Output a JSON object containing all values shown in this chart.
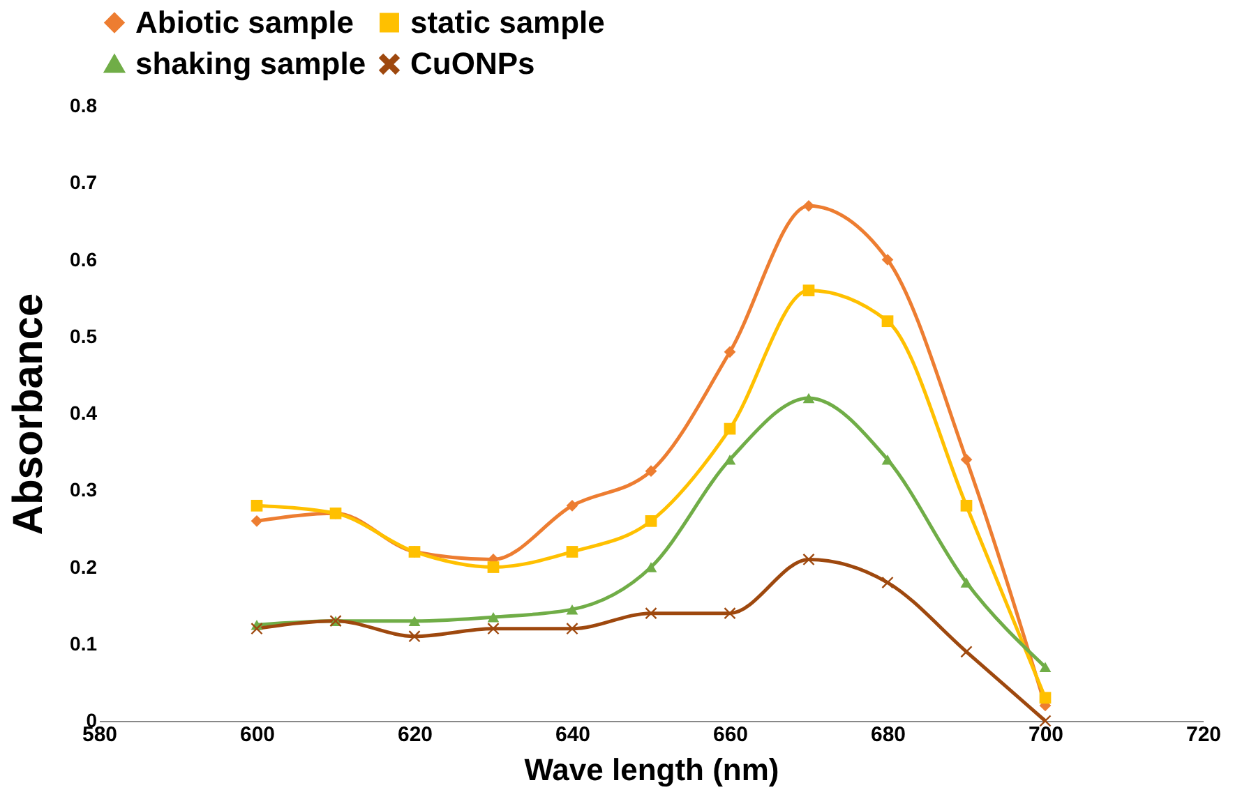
{
  "chart_data": {
    "type": "line",
    "xlabel": "Wave length (nm)",
    "ylabel": "Absorbance",
    "x": [
      600,
      610,
      620,
      630,
      640,
      650,
      660,
      670,
      680,
      690,
      700
    ],
    "series": [
      {
        "name": "Abiotic sample",
        "color": "#ed7d31",
        "marker": "diamond",
        "values": [
          0.26,
          0.27,
          0.22,
          0.21,
          0.28,
          0.325,
          0.48,
          0.67,
          0.6,
          0.34,
          0.02
        ]
      },
      {
        "name": "static sample",
        "color": "#ffc000",
        "marker": "square",
        "values": [
          0.28,
          0.27,
          0.22,
          0.2,
          0.22,
          0.26,
          0.38,
          0.56,
          0.52,
          0.28,
          0.03
        ]
      },
      {
        "name": "shaking sample",
        "color": "#70ad47",
        "marker": "triangle",
        "values": [
          0.125,
          0.13,
          0.13,
          0.135,
          0.145,
          0.2,
          0.34,
          0.42,
          0.34,
          0.18,
          0.07
        ]
      },
      {
        "name": "CuONPs",
        "color": "#9e480e",
        "marker": "cross",
        "values": [
          0.12,
          0.13,
          0.11,
          0.12,
          0.12,
          0.14,
          0.14,
          0.21,
          0.18,
          0.09,
          0.0
        ]
      }
    ],
    "xlim": [
      580,
      720
    ],
    "xticks": [
      580,
      600,
      620,
      640,
      660,
      680,
      700,
      720
    ],
    "ylim": [
      0,
      0.8
    ],
    "yticks": [
      0,
      0.1,
      0.2,
      0.3,
      0.4,
      0.5,
      0.6,
      0.7,
      0.8
    ],
    "grid": false,
    "legend": "top",
    "line_style": "solid"
  }
}
